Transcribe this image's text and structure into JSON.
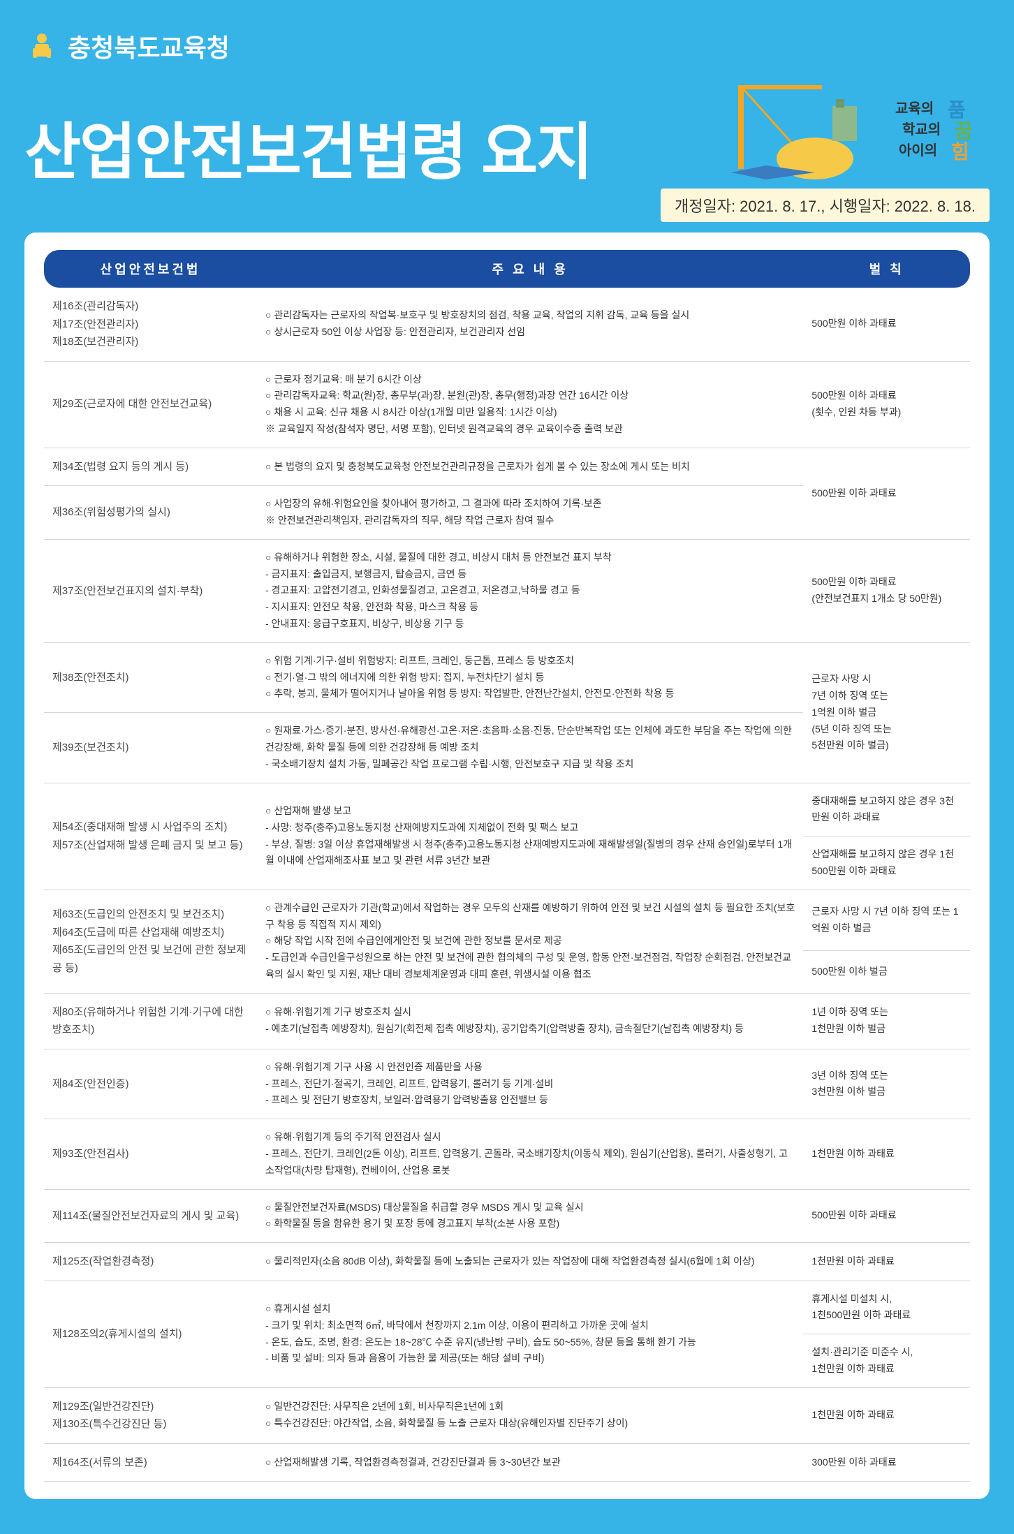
{
  "header": {
    "org_name": "충청북도교육청",
    "main_title": "산업안전보건법령 요지",
    "date_info": "개정일자: 2021. 8. 17., 시행일자: 2022. 8. 18.",
    "slogan_lines": [
      "교육의 품",
      "학교의 꿈",
      "아이의 힘"
    ]
  },
  "table": {
    "headers": {
      "law": "산업안전보건법",
      "content": "주  요    내  용",
      "penalty": "벌 칙"
    },
    "rows": [
      {
        "law": "제16조(관리감독자)\n제17조(안전관리자)\n제18조(보건관리자)",
        "content": "○ 관리감독자는 근로자의 작업복·보호구 및 방호장치의 점검, 착용 교육, 작업의 지휘 감독, 교육 등을 실시\n○ 상시근로자 50인 이상 사업장 등: 안전관리자, 보건관리자 선임",
        "penalty": "500만원 이하 과태료"
      },
      {
        "law": "제29조(근로자에 대한 안전보건교육)",
        "content": "○ 근로자 정기교육: 매 분기 6시간 이상\n○ 관리감독자교육: 학교(원)장, 총무부(과)장, 분원(관)장, 총무(행정)과장 연간 16시간 이상\n○ 채용 시 교육: 신규 채용 시 8시간 이상(1개월 미만 일용직: 1시간 이상)\n※ 교육일지 작성(참석자 명단, 서명 포함), 인터넷 원격교육의 경우 교육이수증 출력 보관",
        "penalty": "500만원 이하 과태료\n(횟수, 인원 차등 부과)"
      },
      {
        "law": "제34조(법령 요지 등의 게시 등)",
        "content": "○ 본 법령의 요지 및 충청북도교육청 안전보건관리규정을 근로자가 쉽게 볼 수 있는 장소에 게시 또는 비치",
        "penalty": "500만원 이하 과태료",
        "penalty_rowspan": 2
      },
      {
        "law": "제36조(위험성평가의 실시)",
        "content": "○ 사업장의 유해·위험요인을 찾아내어 평가하고, 그 결과에 따라 조치하여 기록·보존\n※ 안전보건관리책임자, 관리감독자의 직무, 해당 작업 근로자 참여 필수"
      },
      {
        "law": "제37조(안전보건표지의 설치·부착)",
        "content": "○ 유해하거나 위험한 장소, 시설, 물질에 대한 경고, 비상시 대처 등 안전보건 표지 부착\n   - 금지표지: 출입금지, 보행금지, 탑승금지, 금연 등\n   - 경고표지: 고압전기경고, 인화성물질경고, 고온경고, 저온경고,낙하물 경고 등\n   - 지시표지: 안전모 착용, 안전화 착용, 마스크 착용 등\n   - 안내표지: 응급구호표지, 비상구, 비상용 기구 등",
        "penalty": "500만원 이하 과태료\n(안전보건표지 1개소 당 50만원)"
      },
      {
        "law": "제38조(안전조치)",
        "content": "○ 위험 기계·기구·설비 위험방지: 리프트, 크레인, 둥근톱, 프레스 등 방호조치\n○ 전기·열·그 밖의 에너지에 의한 위험 방지: 접지, 누전차단기 설치 등\n○ 추락, 붕괴, 물체가 떨어지거나 날아올 위험 등 방지: 작업발판, 안전난간설치, 안전모·안전화 착용 등",
        "penalty": "근로자 사망 시\n7년 이하 징역 또는\n1억원 이하 벌금\n(5년 이하 징역 또는\n5천만원 이하 벌금)",
        "penalty_rowspan": 2
      },
      {
        "law": "제39조(보건조치)",
        "content": "○ 원재료·가스·증기·분진, 방사선·유해광선·고온·저온·초음파·소음·진동, 단순반복작업 또는 인체에 과도한 부담을 주는 작업에 의한 건강장해, 화학 물질 등에 의한 건강장해 등 예방 조치\n   - 국소배기장치 설치 가동, 밀폐공간 작업 프로그램 수립·시행, 안전보호구 지급 및 착용 조치"
      },
      {
        "law": "제54조(중대재해 발생 시 사업주의 조치)\n제57조(산업재해 발생 은폐 금지 및 보고 등)",
        "content": "○ 산업재해 발생 보고\n   - 사망: 청주(충주)고용노동지청 산재예방지도과에 지체없이 전화 및 팩스 보고\n   - 부상, 질병: 3일 이상 휴업재해발생 시 청주(충주)고용노동지청 산재예방지도과에 재해발생일(질병의 경우 산재 승인일)로부터 1개월 이내에 산업재해조사표 보고 및 관련 서류 3년간 보관",
        "penalty_split": [
          "중대재해를 보고하지 않은 경우 3천만원 이하 과태료",
          "산업재해를 보고하지 않은 경우 1천500만원 이하 과태료"
        ]
      },
      {
        "law": "제63조(도급인의 안전조치 및 보건조치)\n제64조(도급에 따른 산업재해 예방조치)\n제65조(도급인의 안전 및 보건에 관한 정보제공 등)",
        "content": "○ 관계수급인 근로자가 기관(학교)에서 작업하는 경우 모두의 산재를 예방하기 위하여 안전 및 보건 시설의 설치 등 필요한 조치(보호구 착용 등 직접적 지시 제외)\n○ 해당 작업 시작 전에 수급인에게안전 및 보건에 관한 정보를 문서로 제공\n   - 도급인과 수급인을구성원으로 하는 안전 및 보건에 관한 협의체의 구성 및 운영, 합동 안전·보건점검, 작업장 순회점검, 안전보건교육의 실시 확인 및 지원, 재난 대비 경보체계운영과 대피 훈련, 위생시설 이용 협조",
        "penalty_split": [
          "근로자 사망 시 7년 이하 징역 또는 1억원 이하 벌금",
          "500만원 이하 벌금"
        ]
      },
      {
        "law": "제80조(유해하거나 위험한 기계·기구에 대한 방호조치)",
        "content": "○ 유해·위험기계 기구 방호조치 실시\n   - 예초기(날접촉 예방장치), 원심기(회전체 접촉 예방장치), 공기압축기(압력방출 장치), 금속절단기(날접촉 예방장치) 등",
        "penalty": "1년 이하 징역 또는\n1천만원 이하 벌금"
      },
      {
        "law": "제84조(안전인증)",
        "content": "○ 유해·위험기계 기구 사용 시 안전인증 제품만을 사용\n   - 프레스, 전단기·절곡기, 크레인, 리프트, 압력용기, 롤러기 등 기계·설비\n   - 프레스 및 전단기 방호장치, 보일러·압력용기 압력방출용 안전밸브 등",
        "penalty": "3년 이하 징역 또는\n3천만원 이하 벌금"
      },
      {
        "law": "제93조(안전검사)",
        "content": "○ 유해·위험기계 등의 주기적 안전검사 실시\n   - 프레스, 전단기, 크레인(2톤 이상), 리프트, 압력용기, 곤돌라, 국소배기장치(이동식 제외), 원심기(산업용), 롤러기, 사출성형기, 고소작업대(차량 탑재형), 컨베이어, 산업용 로봇",
        "penalty": "1천만원 이하 과태료"
      },
      {
        "law": "제114조(물질안전보건자료의 게시 및 교육)",
        "content": "○ 물질안전보건자료(MSDS) 대상물질을 취급할 경우 MSDS 게시 및 교육 실시\n○ 화학물질 등을 함유한 용기 및 포장 등에 경고표지 부착(소분 사용 포함)",
        "penalty": "500만원 이하 과태료"
      },
      {
        "law": "제125조(작업환경측정)",
        "content": "○ 물리적인자(소음 80dB 이상), 화학물질 등에 노출되는 근로자가 있는 작업장에 대해 작업환경측정 실시(6월에 1회 이상)",
        "penalty": "1천만원 이하 과태료"
      },
      {
        "law": "제128조의2(휴게시설의 설치)",
        "content": "○ 휴게시설 설치\n   - 크기 및 위치: 최소면적 6㎡, 바닥에서 천장까지 2.1m 이상, 이용이 편리하고 가까운 곳에 설치\n   - 온도, 습도, 조명, 환경: 온도는 18~28℃ 수준 유지(냉난방 구비), 습도 50~55%, 창문 등을 통해 환기 가능\n   - 비품 및 설비: 의자 등과 음용이 가능한 물 제공(또는 해당 설비 구비)",
        "penalty_split": [
          "휴게시설 미설치 시,\n1천500만원 이하 과태료",
          "설치·관리기준 미준수 시,\n1천만원 이하 과태료"
        ]
      },
      {
        "law": "제129조(일반건강진단)\n제130조(특수건강진단 등)",
        "content": "○ 일반건강진단: 사무직은 2년에 1회, 비사무직은1년에 1회\n○ 특수건강진단: 야간작업, 소음, 화학물질 등 노출 근로자 대상(유해인자별 진단주기 상이)",
        "penalty": "1천만원 이하 과태료"
      },
      {
        "law": "제164조(서류의 보존)",
        "content": "○ 산업재해발생 기록, 작업환경측정결과, 건강진단결과 등 3~30년간 보관",
        "penalty": "300만원 이하 과태료"
      }
    ]
  }
}
